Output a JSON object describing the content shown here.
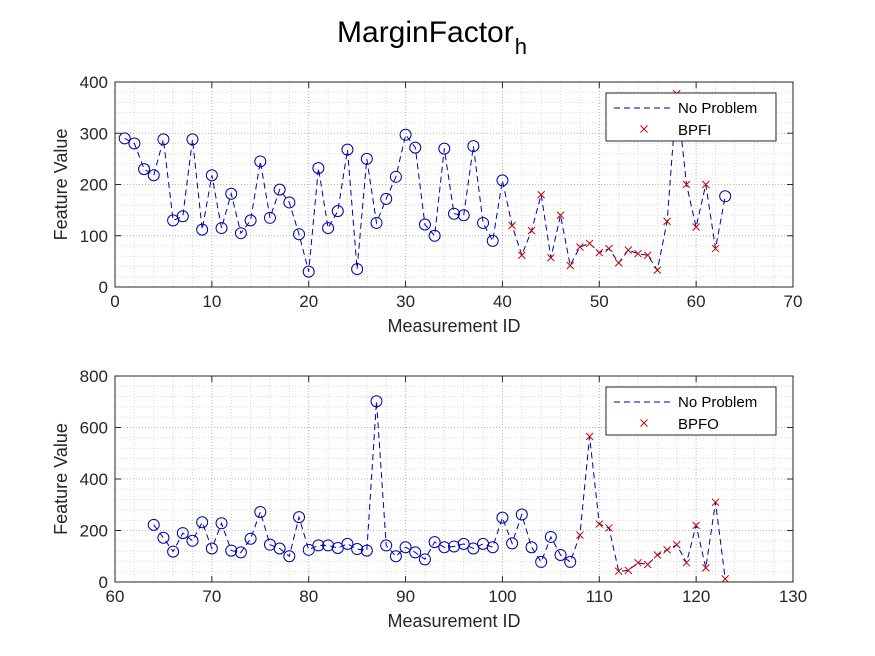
{
  "figure": {
    "title_main": "MarginFactor",
    "title_sub": "h"
  },
  "legend_labels": [
    "No Problem"
  ],
  "chart_data": [
    {
      "type": "line",
      "xlabel": "Measurement ID",
      "ylabel": "Feature Value",
      "xlim": [
        0,
        70
      ],
      "ylim": [
        0,
        400
      ],
      "xticks": [
        0,
        10,
        20,
        30,
        40,
        50,
        60,
        70
      ],
      "yticks": [
        0,
        100,
        200,
        300,
        400
      ],
      "grid": true,
      "minor_grid": true,
      "legend_position": "top-right",
      "line_series": {
        "name": "No Problem",
        "color": "#0000aa",
        "style": "dashed"
      },
      "marker_series": [
        {
          "name": "",
          "marker": "circle",
          "color": "#0000aa"
        },
        {
          "name": "BPFI",
          "marker": "x",
          "color": "#cc0000"
        }
      ],
      "points": [
        [
          1,
          290,
          0
        ],
        [
          2,
          280,
          0
        ],
        [
          3,
          230,
          0
        ],
        [
          4,
          218,
          0
        ],
        [
          5,
          288,
          0
        ],
        [
          6,
          130,
          0
        ],
        [
          7,
          138,
          0
        ],
        [
          8,
          288,
          0
        ],
        [
          9,
          112,
          0
        ],
        [
          10,
          218,
          0
        ],
        [
          11,
          115,
          0
        ],
        [
          12,
          182,
          0
        ],
        [
          13,
          105,
          0
        ],
        [
          14,
          130,
          0
        ],
        [
          15,
          245,
          0
        ],
        [
          16,
          135,
          0
        ],
        [
          17,
          190,
          0
        ],
        [
          18,
          165,
          0
        ],
        [
          19,
          103,
          0
        ],
        [
          20,
          30,
          0
        ],
        [
          21,
          232,
          0
        ],
        [
          22,
          115,
          0
        ],
        [
          23,
          148,
          0
        ],
        [
          24,
          268,
          0
        ],
        [
          25,
          35,
          0
        ],
        [
          26,
          250,
          0
        ],
        [
          27,
          125,
          0
        ],
        [
          28,
          172,
          0
        ],
        [
          29,
          215,
          0
        ],
        [
          30,
          297,
          0
        ],
        [
          31,
          272,
          0
        ],
        [
          32,
          122,
          0
        ],
        [
          33,
          100,
          0
        ],
        [
          34,
          270,
          0
        ],
        [
          35,
          143,
          0
        ],
        [
          36,
          140,
          0
        ],
        [
          37,
          275,
          0
        ],
        [
          38,
          125,
          0
        ],
        [
          39,
          90,
          0
        ],
        [
          40,
          208,
          0
        ],
        [
          41,
          120,
          1
        ],
        [
          42,
          62,
          1
        ],
        [
          43,
          110,
          1
        ],
        [
          44,
          180,
          1
        ],
        [
          45,
          57,
          1
        ],
        [
          46,
          140,
          1
        ],
        [
          47,
          42,
          1
        ],
        [
          48,
          78,
          1
        ],
        [
          49,
          85,
          1
        ],
        [
          50,
          67,
          1
        ],
        [
          51,
          75,
          1
        ],
        [
          52,
          47,
          1
        ],
        [
          53,
          72,
          1
        ],
        [
          54,
          65,
          1
        ],
        [
          55,
          62,
          1
        ],
        [
          56,
          33,
          1
        ],
        [
          57,
          128,
          1
        ],
        [
          58,
          377,
          1
        ],
        [
          59,
          200,
          1
        ],
        [
          60,
          117,
          1
        ],
        [
          61,
          200,
          1
        ],
        [
          62,
          75,
          1
        ],
        [
          63,
          177,
          0
        ]
      ]
    },
    {
      "type": "line",
      "xlabel": "Measurement ID",
      "ylabel": "Feature Value",
      "xlim": [
        60,
        130
      ],
      "ylim": [
        0,
        800
      ],
      "xticks": [
        60,
        70,
        80,
        90,
        100,
        110,
        120,
        130
      ],
      "yticks": [
        0,
        200,
        400,
        600,
        800
      ],
      "grid": true,
      "minor_grid": true,
      "legend_position": "top-right",
      "line_series": {
        "name": "No Problem",
        "color": "#0000aa",
        "style": "dashed"
      },
      "marker_series": [
        {
          "name": "",
          "marker": "circle",
          "color": "#0000aa"
        },
        {
          "name": "BPFO",
          "marker": "x",
          "color": "#cc0000"
        }
      ],
      "points": [
        [
          64,
          222,
          0
        ],
        [
          65,
          172,
          0
        ],
        [
          66,
          118,
          0
        ],
        [
          67,
          190,
          0
        ],
        [
          68,
          160,
          0
        ],
        [
          69,
          232,
          0
        ],
        [
          70,
          130,
          0
        ],
        [
          71,
          228,
          0
        ],
        [
          72,
          122,
          0
        ],
        [
          73,
          115,
          0
        ],
        [
          74,
          168,
          0
        ],
        [
          75,
          272,
          0
        ],
        [
          76,
          145,
          0
        ],
        [
          77,
          130,
          0
        ],
        [
          78,
          100,
          0
        ],
        [
          79,
          252,
          0
        ],
        [
          80,
          125,
          0
        ],
        [
          81,
          142,
          0
        ],
        [
          82,
          142,
          0
        ],
        [
          83,
          132,
          0
        ],
        [
          84,
          148,
          0
        ],
        [
          85,
          128,
          0
        ],
        [
          86,
          122,
          0
        ],
        [
          87,
          702,
          0
        ],
        [
          88,
          142,
          0
        ],
        [
          89,
          100,
          0
        ],
        [
          90,
          135,
          0
        ],
        [
          91,
          115,
          0
        ],
        [
          92,
          88,
          0
        ],
        [
          93,
          155,
          0
        ],
        [
          94,
          135,
          0
        ],
        [
          95,
          138,
          0
        ],
        [
          96,
          148,
          0
        ],
        [
          97,
          130,
          0
        ],
        [
          98,
          148,
          0
        ],
        [
          99,
          135,
          0
        ],
        [
          100,
          250,
          0
        ],
        [
          101,
          150,
          0
        ],
        [
          102,
          262,
          0
        ],
        [
          103,
          135,
          0
        ],
        [
          104,
          78,
          0
        ],
        [
          105,
          175,
          0
        ],
        [
          106,
          105,
          0
        ],
        [
          107,
          78,
          0
        ],
        [
          108,
          182,
          1
        ],
        [
          109,
          565,
          1
        ],
        [
          110,
          225,
          1
        ],
        [
          111,
          210,
          1
        ],
        [
          112,
          42,
          1
        ],
        [
          113,
          45,
          1
        ],
        [
          114,
          75,
          1
        ],
        [
          115,
          68,
          1
        ],
        [
          116,
          105,
          1
        ],
        [
          117,
          125,
          1
        ],
        [
          118,
          145,
          1
        ],
        [
          119,
          75,
          1
        ],
        [
          120,
          220,
          1
        ],
        [
          121,
          55,
          1
        ],
        [
          122,
          310,
          1
        ],
        [
          123,
          12,
          1
        ]
      ]
    }
  ]
}
